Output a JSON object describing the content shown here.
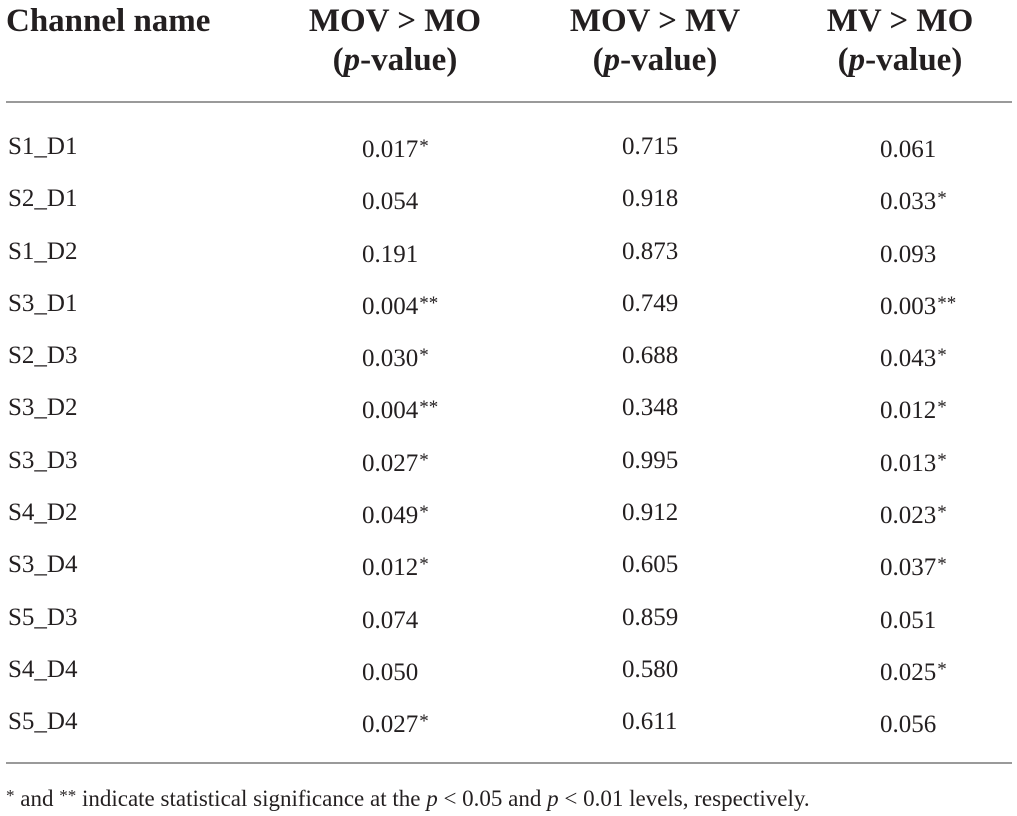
{
  "table": {
    "headers": {
      "channel": "Channel name",
      "col1_line1": "MOV > MO",
      "col2_line1": "MOV > MV",
      "col3_line1": "MV > MO",
      "pvalue_open": "(",
      "pvalue_p": "p",
      "pvalue_rest": "-value)"
    },
    "rows": [
      {
        "channel": "S1_D1",
        "mov_mo": "0.017",
        "mov_mo_sig": "*",
        "mov_mv": "0.715",
        "mv_mo": "0.061",
        "mv_mo_sig": ""
      },
      {
        "channel": "S2_D1",
        "mov_mo": "0.054",
        "mov_mo_sig": "",
        "mov_mv": "0.918",
        "mv_mo": "0.033",
        "mv_mo_sig": "*"
      },
      {
        "channel": "S1_D2",
        "mov_mo": "0.191",
        "mov_mo_sig": "",
        "mov_mv": "0.873",
        "mv_mo": "0.093",
        "mv_mo_sig": ""
      },
      {
        "channel": "S3_D1",
        "mov_mo": "0.004",
        "mov_mo_sig": "**",
        "mov_mv": "0.749",
        "mv_mo": "0.003",
        "mv_mo_sig": "**"
      },
      {
        "channel": "S2_D3",
        "mov_mo": "0.030",
        "mov_mo_sig": "*",
        "mov_mv": "0.688",
        "mv_mo": "0.043",
        "mv_mo_sig": "*"
      },
      {
        "channel": "S3_D2",
        "mov_mo": "0.004",
        "mov_mo_sig": "**",
        "mov_mv": "0.348",
        "mv_mo": "0.012",
        "mv_mo_sig": "*"
      },
      {
        "channel": "S3_D3",
        "mov_mo": "0.027",
        "mov_mo_sig": "*",
        "mov_mv": "0.995",
        "mv_mo": "0.013",
        "mv_mo_sig": "*"
      },
      {
        "channel": "S4_D2",
        "mov_mo": "0.049",
        "mov_mo_sig": "*",
        "mov_mv": "0.912",
        "mv_mo": "0.023",
        "mv_mo_sig": "*"
      },
      {
        "channel": "S3_D4",
        "mov_mo": "0.012",
        "mov_mo_sig": "*",
        "mov_mv": "0.605",
        "mv_mo": "0.037",
        "mv_mo_sig": "*"
      },
      {
        "channel": "S5_D3",
        "mov_mo": "0.074",
        "mov_mo_sig": "",
        "mov_mv": "0.859",
        "mv_mo": "0.051",
        "mv_mo_sig": ""
      },
      {
        "channel": "S4_D4",
        "mov_mo": "0.050",
        "mov_mo_sig": "",
        "mov_mv": "0.580",
        "mv_mo": "0.025",
        "mv_mo_sig": "*"
      },
      {
        "channel": "S5_D4",
        "mov_mo": "0.027",
        "mov_mo_sig": "*",
        "mov_mv": "0.611",
        "mv_mo": "0.056",
        "mv_mo_sig": ""
      }
    ],
    "footnote": {
      "star1": "*",
      "text1": " and ",
      "star2": "**",
      "text2": " indicate statistical significance at the ",
      "p1": "p",
      "text3": " < 0.05 and ",
      "p2": "p",
      "text4": " < 0.01 levels, respectively."
    }
  }
}
